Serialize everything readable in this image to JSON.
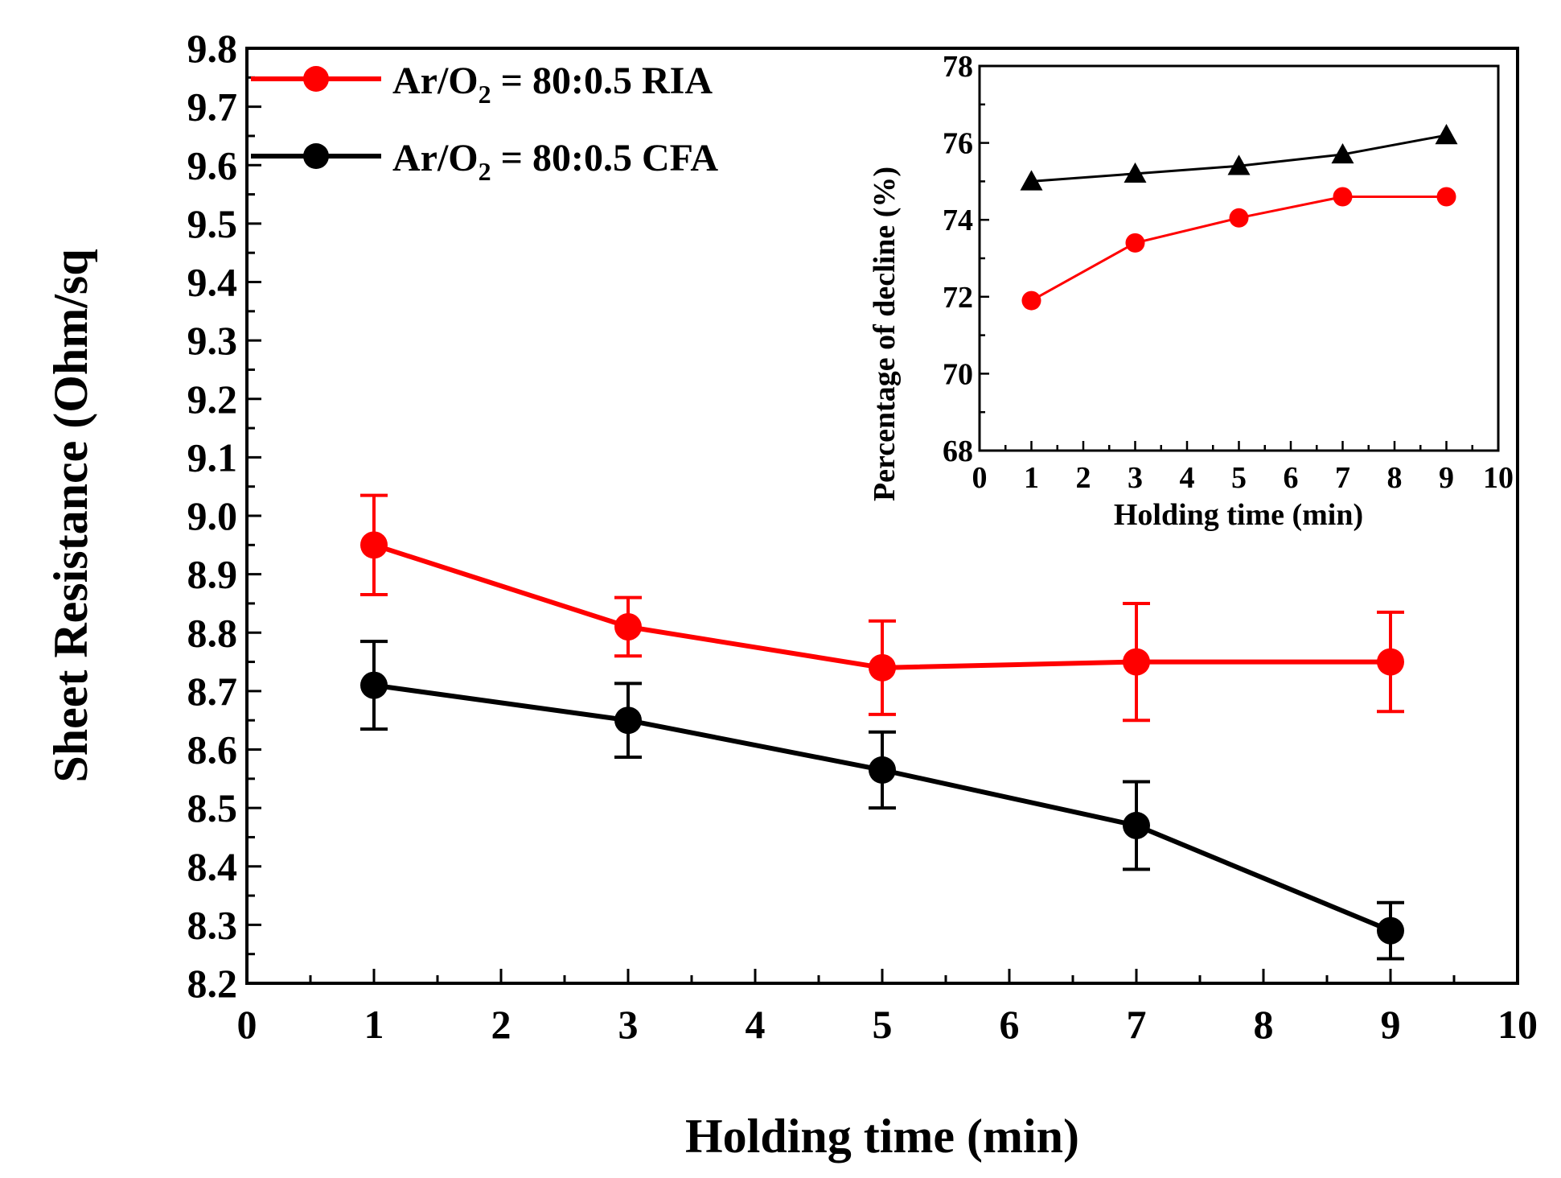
{
  "chart_data": [
    {
      "type": "line",
      "role": "main",
      "title": "",
      "xlabel": "Holding time (min)",
      "ylabel": "Sheet Resistance (Ohm/sq",
      "xlim": [
        0,
        10
      ],
      "ylim": [
        8.2,
        9.8
      ],
      "xticks": [
        "0",
        "1",
        "2",
        "3",
        "4",
        "5",
        "6",
        "7",
        "8",
        "9",
        "10"
      ],
      "yticks": [
        "8.2",
        "8.3",
        "8.4",
        "8.5",
        "8.6",
        "8.7",
        "8.8",
        "8.9",
        "9.0",
        "9.1",
        "9.2",
        "9.3",
        "9.4",
        "9.5",
        "9.6",
        "9.7",
        "9.8"
      ],
      "legend_position": "top-left",
      "series": [
        {
          "name": "Ar/O2 = 80:0.5 RIA",
          "legend_main": "Ar/O",
          "legend_sub": "2",
          "legend_rest": " = 80:0.5 RIA",
          "color": "#ff0000",
          "marker": "circle",
          "x": [
            1,
            3,
            5,
            7,
            9
          ],
          "y": [
            8.95,
            8.81,
            8.74,
            8.75,
            8.75
          ],
          "err": [
            0.085,
            0.05,
            0.08,
            0.1,
            0.085
          ]
        },
        {
          "name": "Ar/O2 = 80:0.5 CFA",
          "legend_main": "Ar/O",
          "legend_sub": "2",
          "legend_rest": " = 80:0.5 CFA",
          "color": "#000000",
          "marker": "circle",
          "x": [
            1,
            3,
            5,
            7,
            9
          ],
          "y": [
            8.71,
            8.65,
            8.565,
            8.47,
            8.29
          ],
          "err": [
            0.075,
            0.063,
            0.065,
            0.075,
            0.048
          ]
        }
      ]
    },
    {
      "type": "line",
      "role": "inset",
      "title": "",
      "xlabel": "Holding time (min)",
      "ylabel": "Percentage of decline (%)",
      "xlim": [
        0,
        10
      ],
      "ylim": [
        68,
        78
      ],
      "xticks": [
        "0",
        "1",
        "2",
        "3",
        "4",
        "5",
        "6",
        "7",
        "8",
        "9",
        "10"
      ],
      "yticks": [
        "68",
        "70",
        "72",
        "74",
        "76",
        "78"
      ],
      "series": [
        {
          "name": "CFA",
          "color": "#000000",
          "marker": "triangle",
          "x": [
            1,
            3,
            5,
            7,
            9
          ],
          "y": [
            75.0,
            75.2,
            75.4,
            75.7,
            76.2
          ]
        },
        {
          "name": "RIA",
          "color": "#ff0000",
          "marker": "circle",
          "x": [
            1,
            3,
            5,
            7,
            9
          ],
          "y": [
            71.9,
            73.4,
            74.05,
            74.6,
            74.6
          ]
        }
      ]
    }
  ]
}
